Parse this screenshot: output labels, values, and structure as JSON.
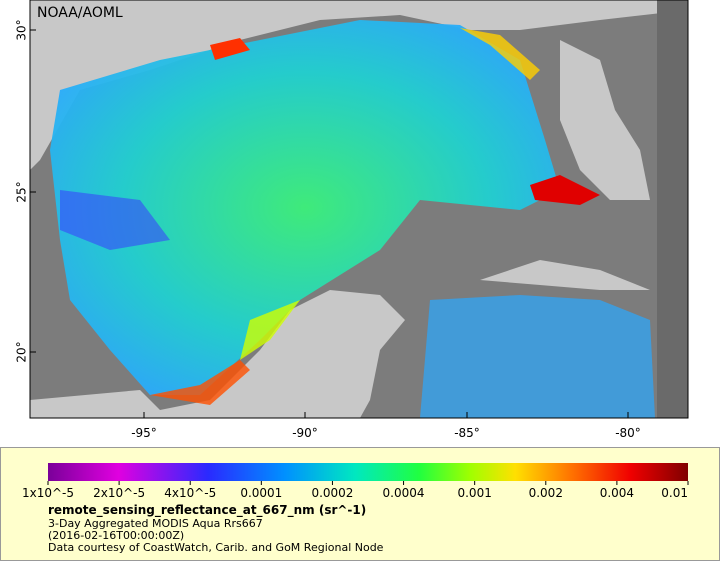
{
  "map": {
    "credit": "NOAA/AOML",
    "lat_labels": [
      "30°",
      "25°",
      "20°"
    ],
    "lon_labels": [
      "-95°",
      "-90°",
      "-85°",
      "-80°"
    ]
  },
  "colorbar": {
    "tick_labels": [
      "1x10^-5",
      "2x10^-5",
      "4x10^-5",
      "0.0001",
      "0.0002",
      "0.0004",
      "0.001",
      "0.002",
      "0.004",
      "0.01"
    ]
  },
  "caption": {
    "variable": "remote_sensing_reflectance_at_667_nm (sr^-1)",
    "product": "3-Day Aggregated MODIS Aqua Rrs667",
    "date": "(2016-02-16T00:00:00Z)",
    "source": "Data courtesy of CoastWatch, Carib. and GoM Regional Node"
  }
}
